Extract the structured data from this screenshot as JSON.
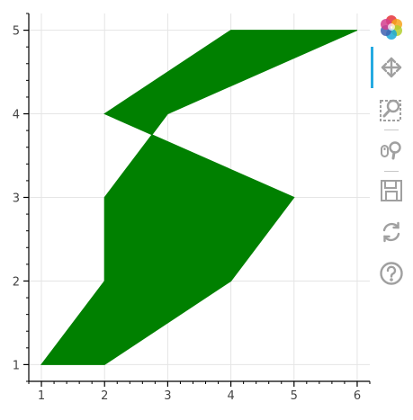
{
  "chart_data": {
    "type": "patch",
    "x_range": [
      0.8,
      6.2
    ],
    "y_range": [
      0.8,
      5.2
    ],
    "x_ticks": [
      1,
      2,
      3,
      4,
      5,
      6
    ],
    "y_ticks": [
      1,
      2,
      3,
      4,
      5
    ],
    "grid": true,
    "polygon": {
      "color": "#008000",
      "points": [
        [
          1,
          1
        ],
        [
          2,
          1
        ],
        [
          4,
          2
        ],
        [
          5,
          3
        ],
        [
          2.75,
          3.75
        ],
        [
          3,
          4
        ],
        [
          6,
          5
        ],
        [
          4,
          5
        ],
        [
          2,
          4
        ],
        [
          2.75,
          3.75
        ],
        [
          2,
          3
        ],
        [
          2,
          2
        ]
      ]
    },
    "title": "",
    "xlabel": "",
    "ylabel": ""
  },
  "toolbar": {
    "tools": [
      {
        "name": "bokeh-logo-icon",
        "interactable": true
      },
      {
        "name": "pan-tool-icon",
        "interactable": true,
        "active": true
      },
      {
        "name": "box-zoom-tool-icon",
        "interactable": true
      },
      {
        "name": "wheel-zoom-tool-icon",
        "interactable": true
      },
      {
        "name": "save-tool-icon",
        "interactable": true
      },
      {
        "name": "reset-tool-icon",
        "interactable": true
      },
      {
        "name": "help-tool-icon",
        "interactable": true
      }
    ]
  }
}
